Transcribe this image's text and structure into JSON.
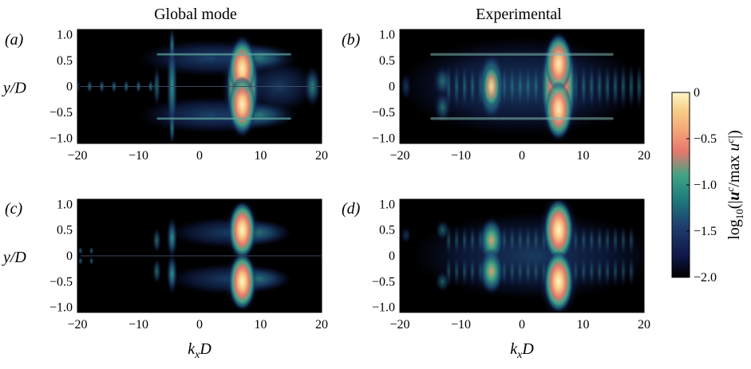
{
  "figure": {
    "column_titles": [
      "Global mode",
      "Experimental"
    ],
    "colorbar_label": "log10(|uc/max uc|)",
    "colorbar_ticks": [
      "0",
      "−0.5",
      "−1.0",
      "−1.5",
      "−2.0"
    ]
  },
  "colors": {
    "colormap": [
      "#000000",
      "#101849",
      "#1f3f6e",
      "#1e7a7d",
      "#3fa383",
      "#e6786e",
      "#f5a778",
      "#f7cd86",
      "#fff6c8"
    ]
  },
  "chart_data": [
    {
      "type": "heatmap",
      "panel": "(a)",
      "title": "Global mode",
      "xlabel": "",
      "ylabel": "y/D",
      "xlim": [
        -20,
        20
      ],
      "ylim": [
        -1.1,
        1.1
      ],
      "xticks": [
        "−20",
        "−10",
        "0",
        "10",
        "20"
      ],
      "yticks": [
        "1.0",
        "0.5",
        "0",
        "−0.5",
        "−1.0"
      ],
      "zlim": [
        -2.0,
        0
      ],
      "features": [
        {
          "kx": 7,
          "y_extent": [
            -0.95,
            0.95
          ],
          "level": 0
        },
        {
          "kx": -4.5,
          "y_extent": [
            -1.0,
            1.0
          ],
          "level": -1.4
        },
        {
          "kx": -20,
          "kx_end": -8,
          "y": 0,
          "level": -1.6
        },
        {
          "kx": 18.5,
          "y": 0,
          "level": -1.6
        }
      ]
    },
    {
      "type": "heatmap",
      "panel": "(b)",
      "title": "Experimental",
      "xlabel": "",
      "ylabel": "",
      "xlim": [
        -20,
        20
      ],
      "ylim": [
        -1.1,
        1.1
      ],
      "xticks": [
        "−20",
        "−10",
        "0",
        "10",
        "20"
      ],
      "yticks": [
        "1.0",
        "0.5",
        "0",
        "−0.5",
        "−1.0"
      ],
      "zlim": [
        -2.0,
        0
      ],
      "features": [
        {
          "kx": 6,
          "y_extent": [
            -1.0,
            1.0
          ],
          "level": 0
        },
        {
          "kx": -5,
          "y_extent": [
            -0.8,
            0.8
          ],
          "level": -0.8
        },
        {
          "kx": -10,
          "kx_end": 20,
          "y": 0,
          "level": -1.3
        }
      ]
    },
    {
      "type": "heatmap",
      "panel": "(c)",
      "title": "",
      "xlabel": "kxD",
      "ylabel": "y/D",
      "xlim": [
        -20,
        20
      ],
      "ylim": [
        -1.1,
        1.1
      ],
      "xticks": [
        "−20",
        "−10",
        "0",
        "10",
        "20"
      ],
      "yticks": [
        "1.0",
        "0.5",
        "0",
        "−0.5",
        "−1.0"
      ],
      "zlim": [
        -2.0,
        0
      ],
      "features": [
        {
          "kx": 7,
          "y": 0.5,
          "level": 0
        },
        {
          "kx": 7,
          "y": -0.5,
          "level": 0
        },
        {
          "kx": -4.5,
          "y_extent": [
            -0.75,
            0.75
          ],
          "level": -1.3
        }
      ]
    },
    {
      "type": "heatmap",
      "panel": "(d)",
      "title": "",
      "xlabel": "kxD",
      "ylabel": "",
      "xlim": [
        -20,
        20
      ],
      "ylim": [
        -1.1,
        1.1
      ],
      "xticks": [
        "−20",
        "−10",
        "0",
        "10",
        "20"
      ],
      "yticks": [
        "1.0",
        "0.5",
        "0",
        "−0.5",
        "−1.0"
      ],
      "zlim": [
        -2.0,
        0
      ],
      "features": [
        {
          "kx": 6,
          "y": 0.5,
          "level": 0
        },
        {
          "kx": 6,
          "y": -0.5,
          "level": 0
        },
        {
          "kx": -5,
          "y_extent": [
            -0.7,
            0.7
          ],
          "level": -0.9
        }
      ]
    }
  ]
}
